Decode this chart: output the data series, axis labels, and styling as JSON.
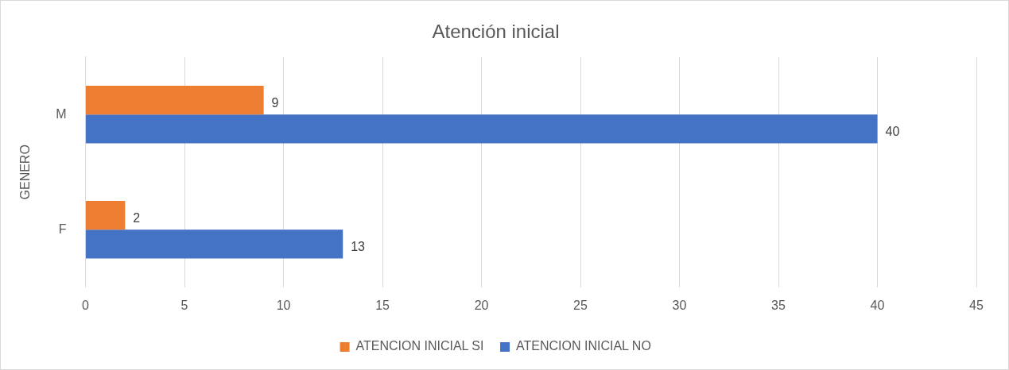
{
  "chart_data": {
    "type": "bar",
    "orientation": "horizontal",
    "title": "Atención inicial",
    "ylabel": "GENERO",
    "categories": [
      "M",
      "F"
    ],
    "series": [
      {
        "name": "ATENCION INICIAL SI",
        "color": "#ed7d31",
        "values": [
          9,
          2
        ]
      },
      {
        "name": "ATENCION INICIAL NO",
        "color": "#4472c4",
        "values": [
          40,
          13
        ]
      }
    ],
    "xlim": [
      0,
      45
    ],
    "xticks": [
      0,
      5,
      10,
      15,
      20,
      25,
      30,
      35,
      40,
      45
    ],
    "grid": "x",
    "legend": "bottom",
    "data_labels": true
  }
}
